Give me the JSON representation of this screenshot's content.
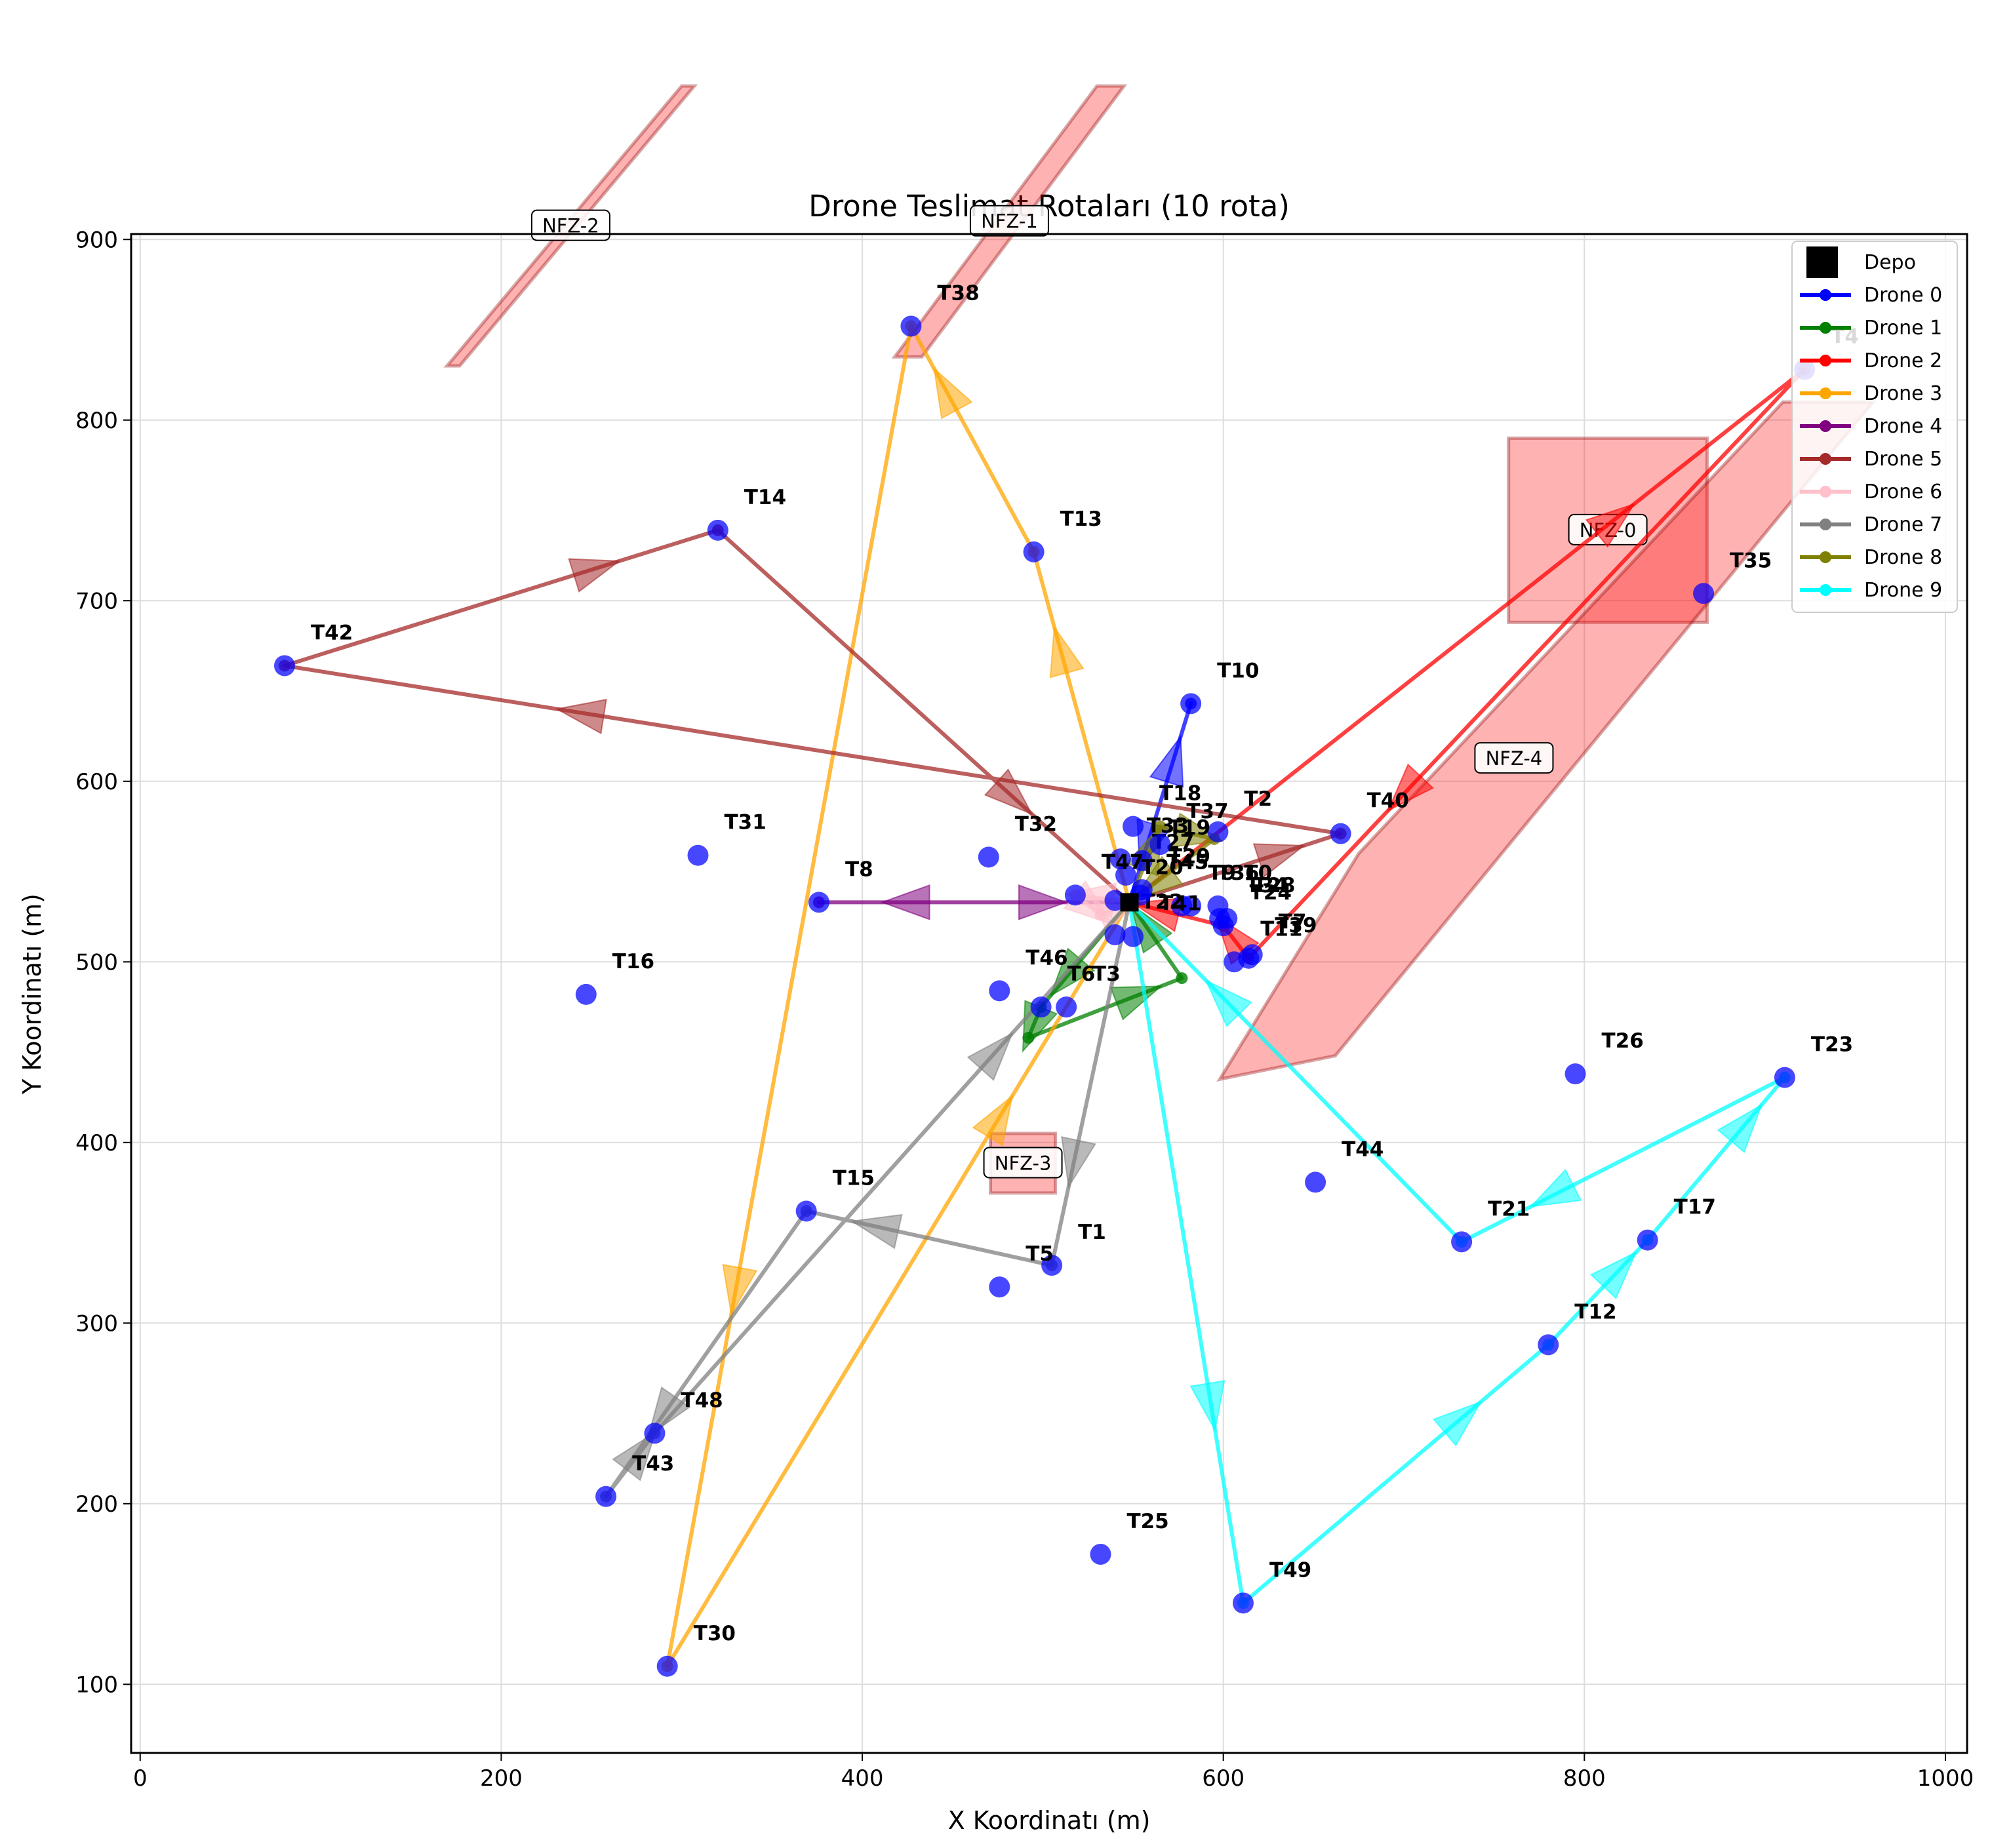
{
  "chart_data": {
    "type": "line",
    "title": "Drone Teslimat Rotaları (10 rota)",
    "xlabel": "X Koordinatı (m)",
    "ylabel": "Y Koordinatı (m)",
    "xlim": [
      -5,
      1012
    ],
    "ylim": [
      62,
      903
    ],
    "xticks": [
      0,
      200,
      400,
      600,
      800,
      1000
    ],
    "yticks": [
      100,
      200,
      300,
      400,
      500,
      600,
      700,
      800,
      900
    ],
    "grid": true,
    "legend_position": "top-right",
    "depot": {
      "label": "Depo",
      "x": 548,
      "y": 533
    },
    "tasks": [
      {
        "id": "T0",
        "x": 597,
        "y": 531
      },
      {
        "id": "T1",
        "x": 505,
        "y": 332
      },
      {
        "id": "T2",
        "x": 597,
        "y": 572
      },
      {
        "id": "T3",
        "x": 513,
        "y": 475
      },
      {
        "id": "T4",
        "x": 922,
        "y": 828
      },
      {
        "id": "T5",
        "x": 476,
        "y": 320
      },
      {
        "id": "T6",
        "x": 499,
        "y": 475
      },
      {
        "id": "T7",
        "x": 616,
        "y": 504
      },
      {
        "id": "T8",
        "x": 376,
        "y": 533
      },
      {
        "id": "T9",
        "x": 577,
        "y": 531
      },
      {
        "id": "T10",
        "x": 582,
        "y": 643
      },
      {
        "id": "T11",
        "x": 606,
        "y": 500
      },
      {
        "id": "T12",
        "x": 780,
        "y": 288
      },
      {
        "id": "T13",
        "x": 495,
        "y": 727
      },
      {
        "id": "T14",
        "x": 320,
        "y": 739
      },
      {
        "id": "T15",
        "x": 369,
        "y": 362
      },
      {
        "id": "T16",
        "x": 247,
        "y": 482
      },
      {
        "id": "T17",
        "x": 835,
        "y": 346
      },
      {
        "id": "T18",
        "x": 550,
        "y": 575
      },
      {
        "id": "T19",
        "x": 555,
        "y": 556
      },
      {
        "id": "T20",
        "x": 540,
        "y": 534
      },
      {
        "id": "T21",
        "x": 732,
        "y": 345
      },
      {
        "id": "T22",
        "x": 540,
        "y": 515
      },
      {
        "id": "T23",
        "x": 911,
        "y": 436
      },
      {
        "id": "T24",
        "x": 600,
        "y": 520
      },
      {
        "id": "T25",
        "x": 532,
        "y": 172
      },
      {
        "id": "T26",
        "x": 795,
        "y": 438
      },
      {
        "id": "T27",
        "x": 546,
        "y": 548
      },
      {
        "id": "T28",
        "x": 602,
        "y": 524
      },
      {
        "id": "T29",
        "x": 555,
        "y": 540
      },
      {
        "id": "T30",
        "x": 292,
        "y": 110
      },
      {
        "id": "T31",
        "x": 309,
        "y": 559
      },
      {
        "id": "T32",
        "x": 470,
        "y": 558
      },
      {
        "id": "T33",
        "x": 543,
        "y": 557
      },
      {
        "id": "T34",
        "x": 598,
        "y": 524
      },
      {
        "id": "T35",
        "x": 866,
        "y": 704
      },
      {
        "id": "T36",
        "x": 582,
        "y": 531
      },
      {
        "id": "T37",
        "x": 565,
        "y": 565
      },
      {
        "id": "T38",
        "x": 427,
        "y": 852
      },
      {
        "id": "T39",
        "x": 614,
        "y": 502
      },
      {
        "id": "T40",
        "x": 665,
        "y": 571
      },
      {
        "id": "T41",
        "x": 550,
        "y": 514
      },
      {
        "id": "T42",
        "x": 80,
        "y": 664
      },
      {
        "id": "T43",
        "x": 258,
        "y": 204
      },
      {
        "id": "T44",
        "x": 651,
        "y": 378
      },
      {
        "id": "T45",
        "x": 554,
        "y": 537
      },
      {
        "id": "T46",
        "x": 476,
        "y": 484
      },
      {
        "id": "T47",
        "x": 518,
        "y": 537
      },
      {
        "id": "T48",
        "x": 285,
        "y": 239
      },
      {
        "id": "T49",
        "x": 611,
        "y": 145
      }
    ],
    "no_fly_zones": [
      {
        "name": "NFZ-0",
        "polygon": [
          [
            758,
            688
          ],
          [
            868,
            688
          ],
          [
            868,
            790
          ],
          [
            758,
            790
          ]
        ]
      },
      {
        "name": "NFZ-1",
        "polygon": [
          [
            418,
            835
          ],
          [
            530,
            985
          ],
          [
            545,
            985
          ],
          [
            433,
            835
          ]
        ]
      },
      {
        "name": "NFZ-2",
        "polygon": [
          [
            170,
            830
          ],
          [
            300,
            985
          ],
          [
            307,
            985
          ],
          [
            177,
            830
          ]
        ]
      },
      {
        "name": "NFZ-3",
        "polygon": [
          [
            471,
            372
          ],
          [
            507,
            372
          ],
          [
            507,
            405
          ],
          [
            471,
            405
          ]
        ]
      },
      {
        "name": "NFZ-4",
        "polygon": [
          [
            598,
            435
          ],
          [
            662,
            448
          ],
          [
            960,
            810
          ],
          [
            910,
            810
          ],
          [
            675,
            560
          ]
        ]
      }
    ],
    "series": [
      {
        "name": "Drone 0",
        "color": "#0000ff",
        "x": [
          548,
          582,
          548
        ],
        "y": [
          533,
          643,
          533
        ]
      },
      {
        "name": "Drone 1",
        "color": "#008000",
        "x": [
          548,
          499,
          492,
          577,
          548
        ],
        "y": [
          533,
          475,
          458,
          491,
          533
        ]
      },
      {
        "name": "Drone 2",
        "color": "#ff0000",
        "x": [
          548,
          922,
          614,
          600,
          548
        ],
        "y": [
          533,
          828,
          502,
          520,
          533
        ]
      },
      {
        "name": "Drone 3",
        "color": "#ffa500",
        "x": [
          548,
          495,
          427,
          292,
          548
        ],
        "y": [
          533,
          727,
          852,
          110,
          533
        ]
      },
      {
        "name": "Drone 4",
        "color": "#800080",
        "x": [
          548,
          376,
          548
        ],
        "y": [
          533,
          533,
          533
        ]
      },
      {
        "name": "Drone 5",
        "color": "#a52a2a",
        "x": [
          548,
          665,
          80,
          320,
          548
        ],
        "y": [
          533,
          571,
          664,
          739,
          533
        ]
      },
      {
        "name": "Drone 6",
        "color": "#ffc0cb",
        "x": [
          548,
          518,
          532,
          548
        ],
        "y": [
          533,
          537,
          526,
          533
        ]
      },
      {
        "name": "Drone 7",
        "color": "#808080",
        "x": [
          548,
          505,
          369,
          258,
          285,
          548
        ],
        "y": [
          533,
          332,
          362,
          204,
          239,
          533
        ]
      },
      {
        "name": "Drone 8",
        "color": "#808000",
        "x": [
          548,
          565,
          595,
          548
        ],
        "y": [
          533,
          575,
          568,
          533
        ]
      },
      {
        "name": "Drone 9",
        "color": "#00ffff",
        "x": [
          548,
          611,
          780,
          835,
          911,
          732,
          548
        ],
        "y": [
          533,
          145,
          288,
          346,
          436,
          345,
          533
        ]
      }
    ]
  }
}
